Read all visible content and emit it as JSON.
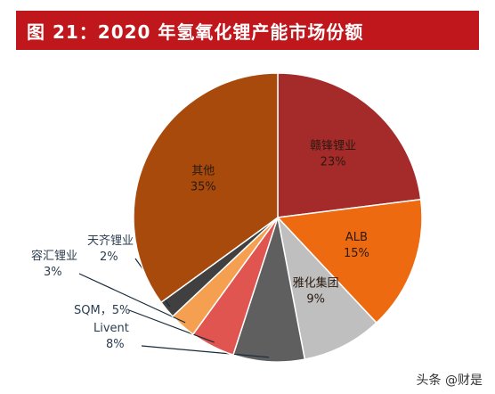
{
  "chart_data": {
    "type": "pie",
    "title": "图 21：2020 年氢氧化锂产能市场份额",
    "slices": [
      {
        "label": "赣锋锂业",
        "pct_label": "23%",
        "value": 23,
        "color": "#a52a2a",
        "label_pos": "inside"
      },
      {
        "label": "ALB",
        "pct_label": "15%",
        "value": 15,
        "color": "#ee6a10",
        "label_pos": "inside"
      },
      {
        "label": "雅化集团",
        "pct_label": "9%",
        "value": 9,
        "color": "#bfbfbf",
        "label_pos": "inside"
      },
      {
        "label": "Livent",
        "pct_label": "8%",
        "value": 8,
        "color": "#5f5f5f",
        "label_pos": "outside"
      },
      {
        "label": "SQM",
        "pct_label": "5%",
        "value": 5,
        "color": "#e05550",
        "label_pos": "outside"
      },
      {
        "label": "容汇锂业",
        "pct_label": "3%",
        "value": 3,
        "color": "#f5a050",
        "label_pos": "outside"
      },
      {
        "label": "天齐锂业",
        "pct_label": "2%",
        "value": 2,
        "color": "#404040",
        "label_pos": "outside"
      },
      {
        "label": "其他",
        "pct_label": "35%",
        "value": 35,
        "color": "#a84a0c",
        "label_pos": "inside"
      }
    ]
  },
  "watermark": {
    "text": "头条 @财是"
  }
}
